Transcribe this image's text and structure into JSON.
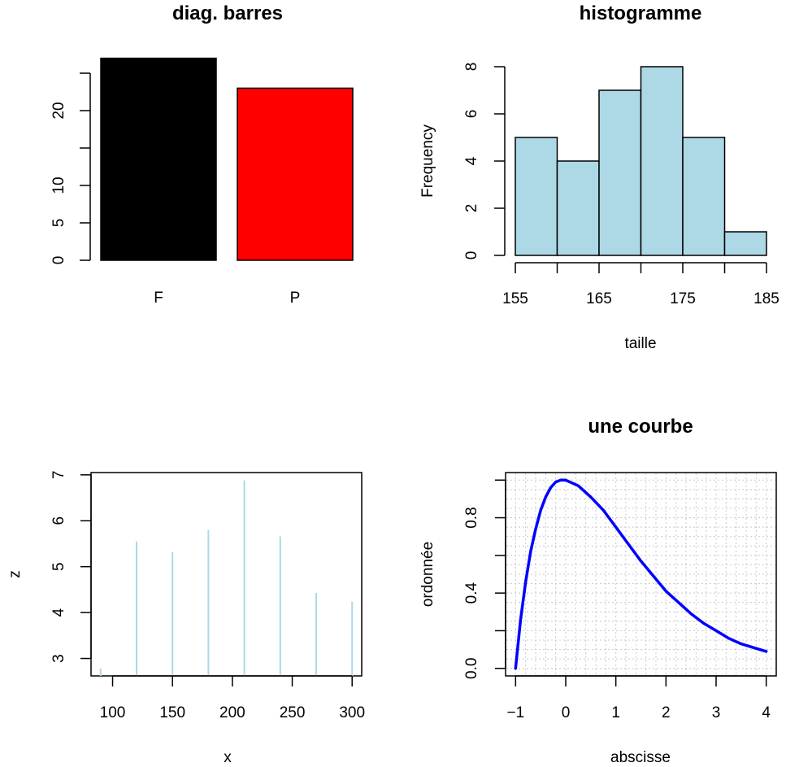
{
  "chart_data": [
    {
      "id": "barplot",
      "type": "bar",
      "title": "diag. barres",
      "xlabel": "",
      "ylabel": "",
      "categories": [
        "F",
        "P"
      ],
      "values": [
        27,
        23
      ],
      "colors": [
        "#000000",
        "#ff0000"
      ],
      "ylim": [
        0,
        25
      ],
      "yticks": [
        0,
        5,
        10,
        15,
        20,
        25
      ],
      "ytick_labels": [
        "0",
        "5",
        "10",
        "",
        "20",
        ""
      ],
      "grid": false
    },
    {
      "id": "histogram",
      "type": "bar",
      "subtype": "histogram",
      "title": "histogramme",
      "xlabel": "taille",
      "ylabel": "Frequency",
      "bins": [
        {
          "from": 155,
          "to": 160,
          "count": 5
        },
        {
          "from": 160,
          "to": 165,
          "count": 4
        },
        {
          "from": 165,
          "to": 170,
          "count": 7
        },
        {
          "from": 170,
          "to": 175,
          "count": 8
        },
        {
          "from": 175,
          "to": 180,
          "count": 5
        },
        {
          "from": 180,
          "to": 185,
          "count": 1
        }
      ],
      "fill": "#add8e6",
      "xlim": [
        155,
        185
      ],
      "ylim": [
        0,
        8
      ],
      "xticks": [
        155,
        160,
        165,
        170,
        175,
        180,
        185
      ],
      "xtick_labels": [
        "155",
        "",
        "165",
        "",
        "175",
        "",
        "185"
      ],
      "yticks": [
        0,
        2,
        4,
        6,
        8
      ],
      "ytick_labels": [
        "0",
        "2",
        "4",
        "6",
        "8"
      ],
      "grid": false
    },
    {
      "id": "spikeplot",
      "type": "line",
      "subtype": "vertical-lines",
      "title": "",
      "xlabel": "x",
      "ylabel": "z",
      "x": [
        90,
        120,
        150,
        180,
        210,
        240,
        270,
        300
      ],
      "y": [
        2.78,
        5.55,
        5.32,
        5.8,
        6.88,
        5.66,
        4.43,
        4.24
      ],
      "color": "#add8e6",
      "xlim": [
        82,
        308
      ],
      "ylim": [
        2.62,
        7.05
      ],
      "xticks": [
        100,
        150,
        200,
        250,
        300
      ],
      "xtick_labels": [
        "100",
        "150",
        "200",
        "250",
        "300"
      ],
      "yticks": [
        3,
        4,
        5,
        6,
        7
      ],
      "ytick_labels": [
        "3",
        "4",
        "5",
        "6",
        "7"
      ],
      "grid": false
    },
    {
      "id": "curve",
      "type": "line",
      "title": "une courbe",
      "xlabel": "abscisse",
      "ylabel": "ordonnée",
      "series": [
        {
          "x": [
            -1,
            -0.9,
            -0.8,
            -0.7,
            -0.6,
            -0.5,
            -0.4,
            -0.3,
            -0.2,
            -0.1,
            0,
            0.25,
            0.5,
            0.75,
            1,
            1.25,
            1.5,
            1.75,
            2,
            2.25,
            2.5,
            2.75,
            3,
            3.25,
            3.5,
            3.75,
            4
          ],
          "y": [
            0,
            0.26,
            0.46,
            0.62,
            0.74,
            0.84,
            0.91,
            0.96,
            0.99,
            1.0,
            1.0,
            0.97,
            0.91,
            0.84,
            0.75,
            0.66,
            0.57,
            0.49,
            0.41,
            0.35,
            0.29,
            0.24,
            0.2,
            0.16,
            0.13,
            0.11,
            0.09
          ]
        }
      ],
      "color": "#0000ff",
      "xlim": [
        -1.2,
        4.2
      ],
      "ylim": [
        -0.04,
        1.04
      ],
      "xticks": [
        -1,
        0,
        1,
        2,
        3,
        4
      ],
      "xtick_labels": [
        "−1",
        "0",
        "1",
        "2",
        "3",
        "4"
      ],
      "yticks": [
        0,
        0.2,
        0.4,
        0.6,
        0.8,
        1.0
      ],
      "ytick_labels": [
        "0.0",
        "",
        "0.4",
        "",
        "0.8",
        ""
      ],
      "grid": true
    }
  ]
}
